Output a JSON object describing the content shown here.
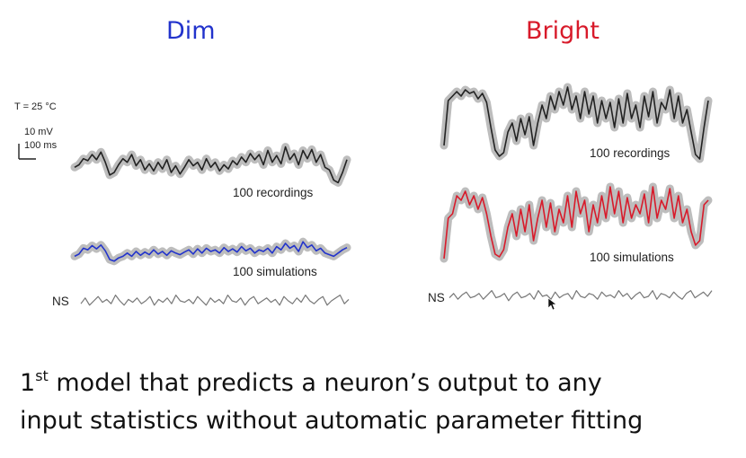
{
  "colors": {
    "dim": "#2233cc",
    "bright": "#d81a2a",
    "recordings": "#222222",
    "band": "#bdbdbd",
    "ns": "#777777"
  },
  "dim": {
    "title": "Dim",
    "temperature_label": "T = 25 ",
    "temperature_unit": "°C",
    "scalebar_mv": "10 mV",
    "scalebar_ms": "100 ms",
    "recordings_label": "100 recordings",
    "simulations_label": "100 simulations",
    "ns_label": "NS"
  },
  "bright": {
    "title": "Bright",
    "recordings_label": "100 recordings",
    "simulations_label": "100 simulations",
    "ns_label": "NS"
  },
  "caption": {
    "line1_prefix": "1",
    "line1_sup": "st",
    "line1_rest": " model that predicts a neuron’s output to any",
    "line2": "input statistics without automatic parameter fitting"
  },
  "chart_data": [
    {
      "type": "line",
      "title": "Dim",
      "series": [
        {
          "name": "100 recordings",
          "values": [
            0.45,
            0.5,
            0.62,
            0.58,
            0.7,
            0.6,
            0.75,
            0.55,
            0.3,
            0.35,
            0.5,
            0.62,
            0.55,
            0.7,
            0.48,
            0.6,
            0.4,
            0.52,
            0.38,
            0.55,
            0.42,
            0.6,
            0.35,
            0.48,
            0.32,
            0.45,
            0.6,
            0.48,
            0.55,
            0.4,
            0.62,
            0.45,
            0.55,
            0.38,
            0.5,
            0.42,
            0.58,
            0.5,
            0.65,
            0.55,
            0.72,
            0.6,
            0.7,
            0.5,
            0.78,
            0.55,
            0.68,
            0.52,
            0.85,
            0.6,
            0.72,
            0.5,
            0.78,
            0.62,
            0.8,
            0.55,
            0.7,
            0.45,
            0.4,
            0.2,
            0.15,
            0.35,
            0.6
          ]
        },
        {
          "name": "100 simulations",
          "values": [
            0.35,
            0.42,
            0.6,
            0.55,
            0.68,
            0.58,
            0.7,
            0.52,
            0.25,
            0.2,
            0.3,
            0.35,
            0.45,
            0.35,
            0.5,
            0.38,
            0.48,
            0.4,
            0.55,
            0.42,
            0.5,
            0.38,
            0.52,
            0.45,
            0.4,
            0.48,
            0.55,
            0.42,
            0.58,
            0.45,
            0.6,
            0.5,
            0.55,
            0.45,
            0.62,
            0.5,
            0.58,
            0.48,
            0.65,
            0.52,
            0.6,
            0.45,
            0.55,
            0.5,
            0.6,
            0.45,
            0.65,
            0.55,
            0.75,
            0.6,
            0.68,
            0.5,
            0.8,
            0.62,
            0.7,
            0.52,
            0.6,
            0.45,
            0.4,
            0.35,
            0.45,
            0.55,
            0.62
          ]
        },
        {
          "name": "NS",
          "values": [
            0.3,
            0.7,
            0.2,
            0.5,
            0.8,
            0.4,
            0.6,
            0.3,
            0.9,
            0.5,
            0.2,
            0.6,
            0.4,
            0.7,
            0.3,
            0.5,
            0.8,
            0.2,
            0.6,
            0.4,
            0.7,
            0.3,
            0.9,
            0.5,
            0.4,
            0.6,
            0.3,
            0.8,
            0.5,
            0.2,
            0.7,
            0.4,
            0.6,
            0.3,
            0.9,
            0.5,
            0.4,
            0.7,
            0.2,
            0.6,
            0.8,
            0.3,
            0.5,
            0.7,
            0.4,
            0.6,
            0.2,
            0.8,
            0.5,
            0.3,
            0.7,
            0.4,
            0.9,
            0.5,
            0.3,
            0.6,
            0.8,
            0.2,
            0.5,
            0.7,
            0.9,
            0.3,
            0.6
          ]
        }
      ]
    },
    {
      "type": "line",
      "title": "Bright",
      "series": [
        {
          "name": "100 recordings",
          "values": [
            0.3,
            0.8,
            0.85,
            0.9,
            0.85,
            0.92,
            0.88,
            0.9,
            0.82,
            0.88,
            0.78,
            0.5,
            0.25,
            0.18,
            0.22,
            0.45,
            0.55,
            0.35,
            0.6,
            0.42,
            0.62,
            0.3,
            0.55,
            0.75,
            0.6,
            0.85,
            0.7,
            0.9,
            0.75,
            0.95,
            0.7,
            0.85,
            0.6,
            0.9,
            0.65,
            0.85,
            0.55,
            0.8,
            0.6,
            0.78,
            0.5,
            0.82,
            0.55,
            0.88,
            0.6,
            0.75,
            0.5,
            0.85,
            0.62,
            0.9,
            0.55,
            0.78,
            0.7,
            0.92,
            0.6,
            0.85,
            0.55,
            0.7,
            0.45,
            0.2,
            0.15,
            0.5,
            0.8
          ]
        },
        {
          "name": "100 simulations",
          "values": [
            0.1,
            0.55,
            0.6,
            0.8,
            0.75,
            0.85,
            0.7,
            0.8,
            0.65,
            0.78,
            0.6,
            0.35,
            0.15,
            0.12,
            0.2,
            0.45,
            0.6,
            0.35,
            0.65,
            0.4,
            0.7,
            0.3,
            0.55,
            0.75,
            0.45,
            0.72,
            0.4,
            0.65,
            0.5,
            0.8,
            0.45,
            0.85,
            0.6,
            0.75,
            0.4,
            0.7,
            0.5,
            0.8,
            0.55,
            0.9,
            0.6,
            0.85,
            0.5,
            0.78,
            0.55,
            0.7,
            0.6,
            0.82,
            0.5,
            0.9,
            0.55,
            0.75,
            0.65,
            0.88,
            0.55,
            0.8,
            0.5,
            0.65,
            0.4,
            0.25,
            0.3,
            0.7,
            0.75
          ]
        },
        {
          "name": "NS",
          "values": [
            0.4,
            0.7,
            0.3,
            0.6,
            0.8,
            0.4,
            0.5,
            0.7,
            0.3,
            0.6,
            0.9,
            0.4,
            0.5,
            0.7,
            0.2,
            0.6,
            0.8,
            0.4,
            0.5,
            0.7,
            0.3,
            0.9,
            0.5,
            0.6,
            0.3,
            0.8,
            0.4,
            0.6,
            0.7,
            0.3,
            0.9,
            0.5,
            0.4,
            0.7,
            0.6,
            0.3,
            0.8,
            0.5,
            0.6,
            0.4,
            0.9,
            0.5,
            0.7,
            0.3,
            0.6,
            0.8,
            0.4,
            0.5,
            0.9,
            0.3,
            0.7,
            0.6,
            0.4,
            0.8,
            0.5,
            0.3,
            0.7,
            0.9,
            0.4,
            0.6,
            0.8,
            0.5,
            0.9
          ]
        }
      ]
    }
  ]
}
